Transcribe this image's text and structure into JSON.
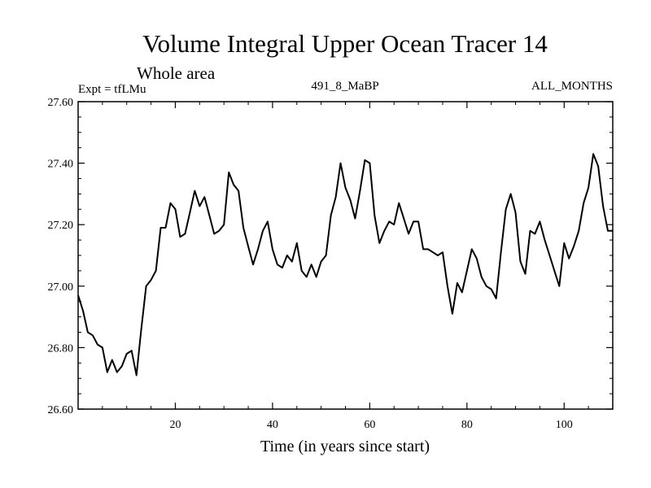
{
  "chart_data": {
    "type": "line",
    "title": "Volume Integral Upper Ocean Tracer 14",
    "subtitle": "Whole area",
    "expt_label": "Expt = tfLMu",
    "center_label": "491_8_MaBP",
    "right_label": "ALL_MONTHS",
    "xlabel": "Time (in years since start)",
    "ylabel": "",
    "xlim": [
      0,
      110
    ],
    "ylim": [
      26.6,
      27.6
    ],
    "x_ticks": [
      20,
      40,
      60,
      80,
      100
    ],
    "x_tick_labels": [
      "20",
      "40",
      "60",
      "80",
      "100"
    ],
    "y_ticks": [
      26.6,
      26.8,
      27.0,
      27.2,
      27.4,
      27.6
    ],
    "y_tick_labels": [
      "26.60",
      "26.80",
      "27.00",
      "27.20",
      "27.40",
      "27.60"
    ],
    "grid": false,
    "line_color": "#000000",
    "series": [
      {
        "name": "Tracer 14",
        "x": [
          0,
          1,
          2,
          3,
          4,
          5,
          6,
          7,
          8,
          9,
          10,
          11,
          12,
          13,
          14,
          15,
          16,
          17,
          18,
          19,
          20,
          21,
          22,
          23,
          24,
          25,
          26,
          27,
          28,
          29,
          30,
          31,
          32,
          33,
          34,
          35,
          36,
          37,
          38,
          39,
          40,
          41,
          42,
          43,
          44,
          45,
          46,
          47,
          48,
          49,
          50,
          51,
          52,
          53,
          54,
          55,
          56,
          57,
          58,
          59,
          60,
          61,
          62,
          63,
          64,
          65,
          66,
          67,
          68,
          69,
          70,
          71,
          72,
          73,
          74,
          75,
          76,
          77,
          78,
          79,
          80,
          81,
          82,
          83,
          84,
          85,
          86,
          87,
          88,
          89,
          90,
          91,
          92,
          93,
          94,
          95,
          96,
          97,
          98,
          99,
          100,
          101,
          102,
          103,
          104,
          105,
          106,
          107,
          108,
          109,
          110
        ],
        "values": [
          26.97,
          26.92,
          26.85,
          26.84,
          26.81,
          26.8,
          26.72,
          26.76,
          26.72,
          26.74,
          26.78,
          26.79,
          26.71,
          26.86,
          27.0,
          27.02,
          27.05,
          27.19,
          27.19,
          27.27,
          27.25,
          27.16,
          27.17,
          27.24,
          27.31,
          27.26,
          27.29,
          27.23,
          27.17,
          27.18,
          27.2,
          27.37,
          27.33,
          27.31,
          27.19,
          27.13,
          27.07,
          27.12,
          27.18,
          27.21,
          27.12,
          27.07,
          27.06,
          27.1,
          27.08,
          27.14,
          27.05,
          27.03,
          27.07,
          27.03,
          27.08,
          27.1,
          27.23,
          27.29,
          27.4,
          27.32,
          27.28,
          27.22,
          27.31,
          27.41,
          27.4,
          27.23,
          27.14,
          27.18,
          27.21,
          27.2,
          27.27,
          27.22,
          27.17,
          27.21,
          27.21,
          27.12,
          27.12,
          27.11,
          27.1,
          27.11,
          27.0,
          26.91,
          27.01,
          26.98,
          27.05,
          27.12,
          27.09,
          27.03,
          27.0,
          26.99,
          26.96,
          27.11,
          27.25,
          27.3,
          27.24,
          27.08,
          27.04,
          27.18,
          27.17,
          27.21,
          27.15,
          27.1,
          27.05,
          27.0,
          27.14,
          27.09,
          27.13,
          27.18,
          27.27,
          27.32,
          27.43,
          27.39,
          27.26,
          27.18,
          27.18
        ]
      }
    ]
  }
}
